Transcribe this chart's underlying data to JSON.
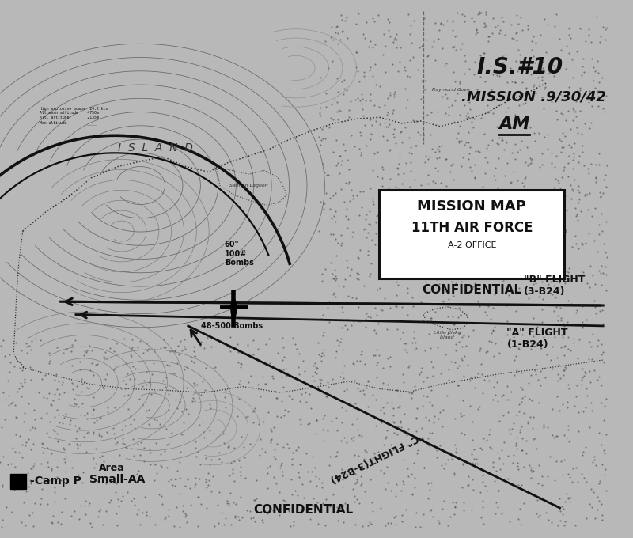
{
  "background_color": "#b8b8b8",
  "map_bg": "#b8b8b8",
  "box_text_line1": "MISSION MAP",
  "box_text_line2": "11TH AIR FORCE",
  "box_text_line3": "A-2 OFFICE",
  "box_text_line4": "CONFIDENTIAL",
  "island_label": "I  S  L  A  N  D",
  "bottom_confidential": "CONFIDENTIAL",
  "b_flight_label": "\"B\" FLIGHT\n(3-B24)",
  "a_flight_label": "\"A\" FLIGHT\n(1-B24)",
  "c_flight_label": "\"C\" FLIGHT(3-B24)",
  "bombs_label1": "60\"\n100#\nBombs",
  "bombs_label2": "48-500 Bombs",
  "text_color": "#111111",
  "line_color": "#111111",
  "box_line_color": "#111111",
  "figsize": [
    8.0,
    6.8
  ],
  "dpi": 100
}
